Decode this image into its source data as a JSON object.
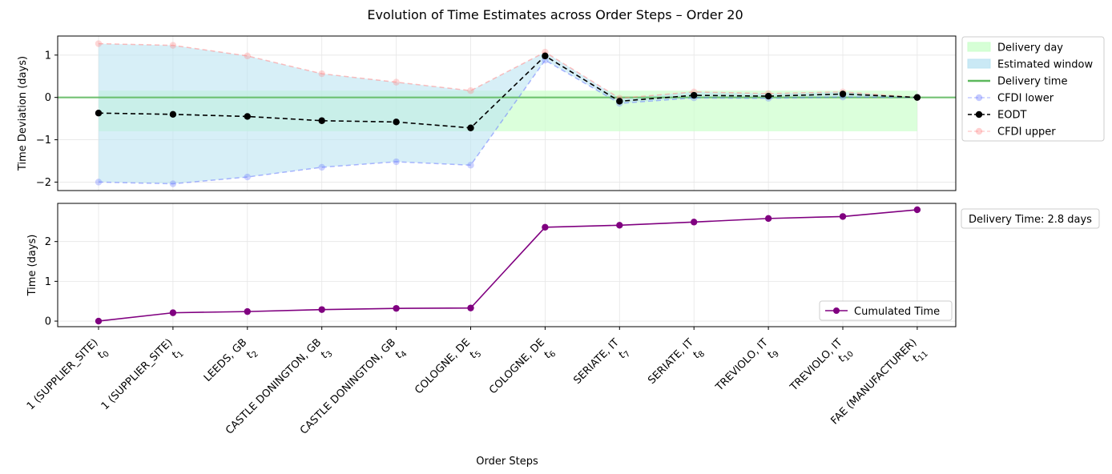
{
  "chart_data": [
    {
      "type": "line",
      "title": "Evolution of Time Estimates across Order Steps – Order 20",
      "ylabel": "Time Deviation (days)",
      "ylim": [
        -2.2,
        1.45
      ],
      "yticks": [
        -2,
        -1,
        0,
        1
      ],
      "ytick_labels": [
        "−2",
        "−1",
        "0",
        "1"
      ],
      "grid": true,
      "legend_position": "outside-right-top",
      "series": [
        {
          "name": "CFDI lower",
          "style": "dashed",
          "color": "#6b7bff",
          "values": [
            -2.0,
            -2.04,
            -1.88,
            -1.65,
            -1.52,
            -1.6,
            0.88,
            -0.14,
            -0.01,
            -0.02,
            0.01,
            0.0
          ]
        },
        {
          "name": "EODT",
          "style": "dashed",
          "color": "#000000",
          "values": [
            -0.37,
            -0.4,
            -0.45,
            -0.55,
            -0.58,
            -0.72,
            0.98,
            -0.09,
            0.05,
            0.03,
            0.08,
            0.0
          ]
        },
        {
          "name": "CFDI upper",
          "style": "dashed",
          "color": "#ff8a8a",
          "values": [
            1.27,
            1.23,
            0.98,
            0.56,
            0.36,
            0.16,
            1.07,
            -0.02,
            0.13,
            0.09,
            0.13,
            0.0
          ]
        }
      ],
      "bands": [
        {
          "name": "Delivery day",
          "color": "#ccffcc",
          "lower": -0.8,
          "upper": 0.16
        },
        {
          "name": "Estimated window",
          "color": "#bde4f2"
        }
      ],
      "reference_lines": [
        {
          "name": "Delivery time",
          "y": 0,
          "color": "#5cb85c"
        }
      ]
    },
    {
      "type": "line",
      "xlabel": "Order Steps",
      "ylabel": "Time (days)",
      "ylim": [
        -0.14,
        2.96
      ],
      "yticks": [
        0,
        1,
        2
      ],
      "ytick_labels": [
        "0",
        "1",
        "2"
      ],
      "grid": true,
      "legend_position": "lower right",
      "series": [
        {
          "name": "Cumulated Time",
          "color": "#800080",
          "values": [
            0.0,
            0.21,
            0.24,
            0.29,
            0.32,
            0.33,
            2.36,
            2.41,
            2.49,
            2.58,
            2.63,
            2.8
          ]
        }
      ],
      "annotation": "Delivery Time: 2.8 days"
    }
  ],
  "x_steps": [
    {
      "label": "1 (SUPPLIER_SITE)",
      "t": "t",
      "sub": "0",
      "color": "#b22222"
    },
    {
      "label": "1 (SUPPLIER_SITE)",
      "t": "t",
      "sub": "1",
      "color": "#000000"
    },
    {
      "label": "LEEDS, GB",
      "t": "t",
      "sub": "2",
      "color": "#000000"
    },
    {
      "label": "CASTLE DONINGTON, GB",
      "t": "t",
      "sub": "3",
      "color": "#000000"
    },
    {
      "label": "CASTLE DONINGTON, GB",
      "t": "t",
      "sub": "4",
      "color": "#000000"
    },
    {
      "label": "COLOGNE, DE",
      "t": "t",
      "sub": "5",
      "color": "#000000"
    },
    {
      "label": "COLOGNE, DE",
      "t": "t",
      "sub": "6",
      "color": "#000000"
    },
    {
      "label": "SERIATE, IT",
      "t": "t",
      "sub": "7",
      "color": "#000000"
    },
    {
      "label": "SERIATE, IT",
      "t": "t",
      "sub": "8",
      "color": "#000000"
    },
    {
      "label": "TREVIOLO, IT",
      "t": "t",
      "sub": "9",
      "color": "#000000"
    },
    {
      "label": "TREVIOLO, IT",
      "t": "t",
      "sub": "10",
      "color": "#000000"
    },
    {
      "label": "FAE (MANUFACTURER)",
      "t": "t",
      "sub": "11",
      "color": "#4a8a1c"
    }
  ]
}
